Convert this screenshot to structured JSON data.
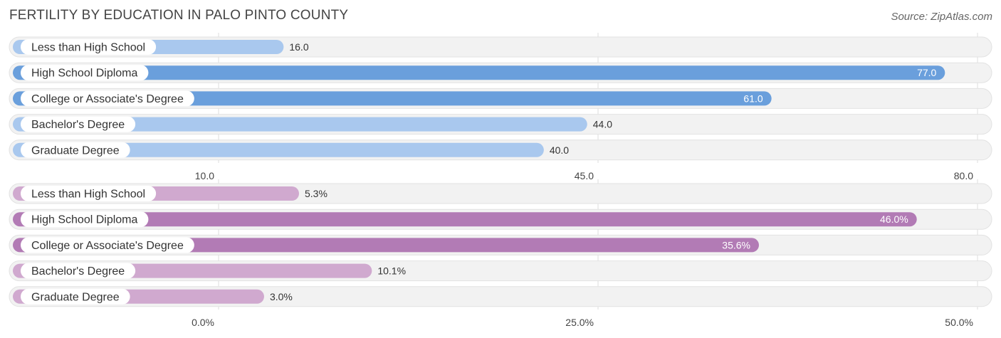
{
  "title": "FERTILITY BY EDUCATION IN PALO PINTO COUNTY",
  "source": "Source: ZipAtlas.com",
  "colors": {
    "top_light": "#a9c8ee",
    "top_dark": "#6a9fdc",
    "bottom_light": "#d0a9cf",
    "bottom_dark": "#b27bb5",
    "track": "#f0f0f0",
    "grid": "#dddddd"
  },
  "chart_data": [
    {
      "type": "bar",
      "orientation": "horizontal",
      "categories": [
        "Less than High School",
        "High School Diploma",
        "College or Associate's Degree",
        "Bachelor's Degree",
        "Graduate Degree"
      ],
      "values": [
        16.0,
        77.0,
        61.0,
        44.0,
        40.0
      ],
      "value_labels": [
        "16.0",
        "77.0",
        "61.0",
        "44.0",
        "40.0"
      ],
      "xlim": [
        10.0,
        80.0
      ],
      "ticks": [
        10.0,
        45.0,
        80.0
      ],
      "tick_labels": [
        "10.0",
        "45.0",
        "80.0"
      ],
      "grid": true
    },
    {
      "type": "bar",
      "orientation": "horizontal",
      "categories": [
        "Less than High School",
        "High School Diploma",
        "College or Associate's Degree",
        "Bachelor's Degree",
        "Graduate Degree"
      ],
      "values": [
        5.3,
        46.0,
        35.6,
        10.1,
        3.0
      ],
      "value_labels": [
        "5.3%",
        "46.0%",
        "35.6%",
        "10.1%",
        "3.0%"
      ],
      "xlim": [
        0.0,
        50.0
      ],
      "ticks": [
        0.0,
        25.0,
        50.0
      ],
      "tick_labels": [
        "0.0%",
        "25.0%",
        "50.0%"
      ],
      "grid": true
    }
  ]
}
